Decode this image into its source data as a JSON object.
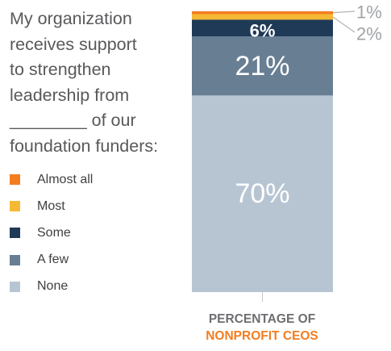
{
  "question": {
    "lines": [
      "My organization",
      "receives support",
      "to strengthen",
      "leadership from",
      "________ of our",
      "foundation funders:"
    ]
  },
  "caption": {
    "line1": "PERCENTAGE OF",
    "line2": "NONPROFIT CEOS"
  },
  "colors": {
    "almost_all": "#f47d20",
    "most": "#f5b935",
    "some": "#1f3a57",
    "a_few": "#687e93",
    "none": "#b7c5d3"
  },
  "chart_data": {
    "type": "bar",
    "stacked": true,
    "orientation": "vertical",
    "categories": [
      ""
    ],
    "series": [
      {
        "name": "Almost all",
        "values": [
          1
        ],
        "label": "1%",
        "color": "#f47d20"
      },
      {
        "name": "Most",
        "values": [
          2
        ],
        "label": "2%",
        "color": "#f5b935"
      },
      {
        "name": "Some",
        "values": [
          6
        ],
        "label": "6%",
        "color": "#1f3a57"
      },
      {
        "name": "A few",
        "values": [
          21
        ],
        "label": "21%",
        "color": "#687e93"
      },
      {
        "name": "None",
        "values": [
          70
        ],
        "label": "70%",
        "color": "#b7c5d3"
      }
    ],
    "ylim": [
      0,
      100
    ],
    "legend": "left",
    "grid": false
  }
}
